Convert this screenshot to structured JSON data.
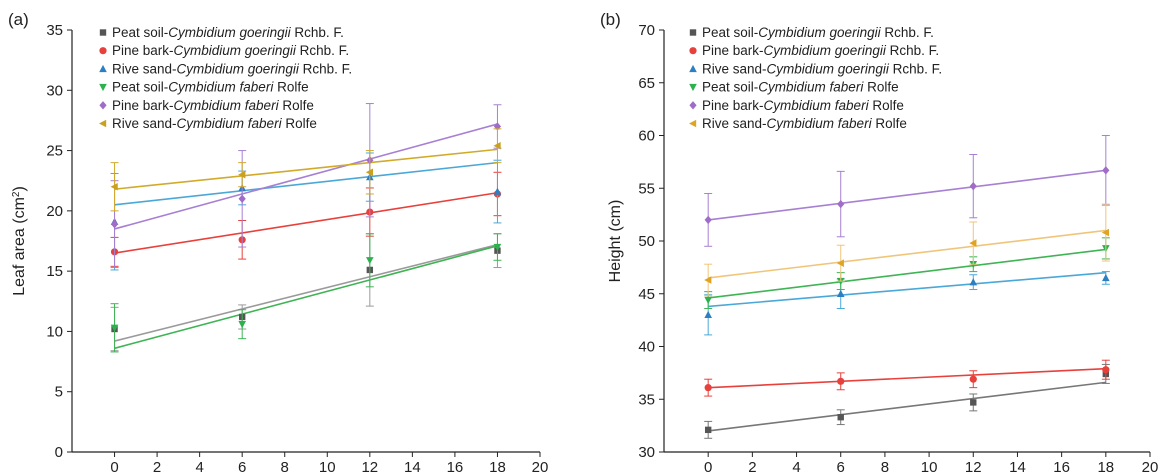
{
  "chart_data": [
    {
      "type": "scatter",
      "panel_label": "(a)",
      "xlabel": "Time (d)",
      "ylabel": "Leaf area (cm",
      "ylabel_sup": "2",
      "ylabel_end": ")",
      "xlim": [
        -2,
        20
      ],
      "ylim": [
        0,
        35
      ],
      "xticks": [
        0,
        2,
        4,
        6,
        8,
        10,
        12,
        14,
        16,
        18,
        20
      ],
      "yticks": [
        0,
        5,
        10,
        15,
        20,
        25,
        30,
        35
      ],
      "legend_position": "top-left",
      "series": [
        {
          "name_parts": [
            "Peat soil-",
            "Cymbidium goeringii",
            " Rchb. F."
          ],
          "color": "#555555",
          "line_color": "#9a9a9a",
          "marker": "square",
          "x": [
            0,
            6,
            12,
            18
          ],
          "y": [
            10.2,
            11.2,
            15.1,
            16.7
          ],
          "err": [
            1.8,
            1.0,
            3.0,
            1.4
          ],
          "fit": [
            9.2,
            17.2
          ]
        },
        {
          "name_parts": [
            "Pine bark-",
            "Cymbidium goeringii",
            " Rchb. F."
          ],
          "color": "#e8413c",
          "line_color": "#e8413c",
          "marker": "circle",
          "x": [
            0,
            6,
            12,
            18
          ],
          "y": [
            16.6,
            17.6,
            19.9,
            21.4
          ],
          "err": [
            1.2,
            1.6,
            2.0,
            1.8
          ],
          "fit": [
            16.5,
            21.5
          ]
        },
        {
          "name_parts": [
            "Rive sand-",
            "Cymbidium goeringii",
            " Rchb. F."
          ],
          "color": "#2c7fc0",
          "line_color": "#4aa8d8",
          "marker": "triangle-up",
          "x": [
            0,
            6,
            12,
            18
          ],
          "y": [
            19.1,
            21.9,
            22.8,
            21.6
          ],
          "err": [
            4.0,
            1.4,
            2.0,
            2.6
          ],
          "fit": [
            20.5,
            24.0
          ]
        },
        {
          "name_parts": [
            "Peat soil-",
            "Cymbidium faberi",
            " Rolfe"
          ],
          "color": "#2bb24c",
          "line_color": "#3fb455",
          "marker": "triangle-down",
          "x": [
            0,
            6,
            12,
            18
          ],
          "y": [
            10.3,
            10.6,
            15.9,
            17.0
          ],
          "err": [
            2.0,
            1.2,
            2.2,
            1.1
          ],
          "fit": [
            8.6,
            17.1
          ]
        },
        {
          "name_parts": [
            "Pine bark-",
            "Cymbidium faberi",
            " Rolfe"
          ],
          "color": "#a06cc8",
          "line_color": "#a77fd3",
          "marker": "diamond",
          "x": [
            0,
            6,
            12,
            18
          ],
          "y": [
            18.9,
            21.0,
            24.2,
            27.0
          ],
          "err": [
            3.6,
            4.0,
            4.7,
            1.8
          ],
          "fit": [
            18.5,
            27.2
          ]
        },
        {
          "name_parts": [
            "Rive sand-",
            "Cymbidium faberi",
            " Rolfe"
          ],
          "color": "#c9a11e",
          "line_color": "#d2aa2a",
          "marker": "triangle-left",
          "x": [
            0,
            6,
            12,
            18
          ],
          "y": [
            22.0,
            23.0,
            23.2,
            25.4
          ],
          "err": [
            2.0,
            1.0,
            1.8,
            1.4
          ],
          "fit": [
            21.8,
            25.1
          ]
        }
      ]
    },
    {
      "type": "scatter",
      "panel_label": "(b)",
      "xlabel": "Time (d)",
      "ylabel": "Height (cm)",
      "ylabel_sup": "",
      "ylabel_end": "",
      "xlim": [
        -2,
        20
      ],
      "ylim": [
        30,
        70
      ],
      "xticks": [
        0,
        2,
        4,
        6,
        8,
        10,
        12,
        14,
        16,
        18,
        20
      ],
      "yticks": [
        30,
        35,
        40,
        45,
        50,
        55,
        60,
        65,
        70
      ],
      "legend_position": "top-left",
      "series": [
        {
          "name_parts": [
            "Peat soil-",
            "Cymbidium goeringii",
            " Rchb. F."
          ],
          "color": "#555555",
          "line_color": "#777777",
          "marker": "square",
          "x": [
            0,
            6,
            12,
            18
          ],
          "y": [
            32.1,
            33.3,
            34.7,
            37.4
          ],
          "err": [
            0.8,
            0.7,
            0.8,
            0.9
          ],
          "fit": [
            32.0,
            36.6
          ]
        },
        {
          "name_parts": [
            "Pine bark-",
            "Cymbidium goeringii",
            " Rchb. F."
          ],
          "color": "#e8413c",
          "line_color": "#e8413c",
          "marker": "circle",
          "x": [
            0,
            6,
            12,
            18
          ],
          "y": [
            36.1,
            36.7,
            36.9,
            37.8
          ],
          "err": [
            0.8,
            0.8,
            0.8,
            0.9
          ],
          "fit": [
            36.1,
            37.9
          ]
        },
        {
          "name_parts": [
            "Rive sand-",
            "Cymbidium goeringii",
            " Rchb. F."
          ],
          "color": "#2c7fc0",
          "line_color": "#4aa8d8",
          "marker": "triangle-up",
          "x": [
            0,
            6,
            12,
            18
          ],
          "y": [
            43.0,
            45.0,
            46.1,
            46.5
          ],
          "err": [
            1.9,
            1.4,
            0.7,
            0.6
          ],
          "fit": [
            43.8,
            47.0
          ]
        },
        {
          "name_parts": [
            "Peat soil-",
            "Cymbidium faberi",
            " Rolfe"
          ],
          "color": "#2bb24c",
          "line_color": "#3fb455",
          "marker": "triangle-down",
          "x": [
            0,
            6,
            12,
            18
          ],
          "y": [
            44.4,
            46.2,
            47.8,
            49.3
          ],
          "err": [
            0.8,
            0.8,
            0.7,
            1.0
          ],
          "fit": [
            44.6,
            49.2
          ]
        },
        {
          "name_parts": [
            "Pine bark-",
            "Cymbidium faberi",
            " Rolfe"
          ],
          "color": "#a06cc8",
          "line_color": "#a77fd3",
          "marker": "diamond",
          "x": [
            0,
            6,
            12,
            18
          ],
          "y": [
            52.0,
            53.5,
            55.2,
            56.7
          ],
          "err": [
            2.5,
            3.1,
            3.0,
            3.3
          ],
          "fit": [
            52.0,
            56.7
          ]
        },
        {
          "name_parts": [
            "Rive sand-",
            "Cymbidium faberi",
            " Rolfe"
          ],
          "color": "#e0a424",
          "line_color": "#f0c57a",
          "marker": "triangle-left",
          "x": [
            0,
            6,
            12,
            18
          ],
          "y": [
            46.3,
            47.9,
            49.8,
            50.8
          ],
          "err": [
            1.5,
            1.7,
            2.0,
            2.7
          ],
          "fit": [
            46.5,
            51.0
          ]
        }
      ]
    }
  ]
}
